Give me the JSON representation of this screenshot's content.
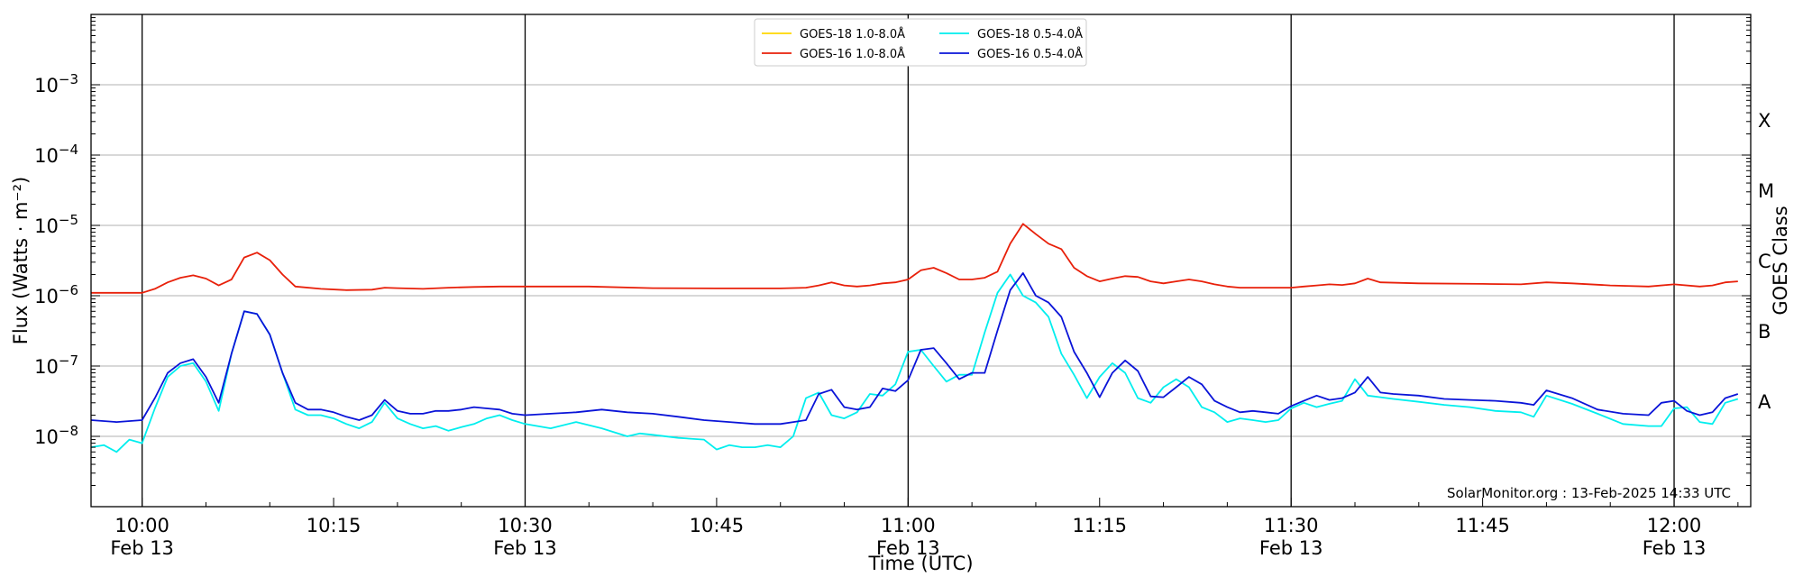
{
  "chart_data": {
    "type": "line",
    "title": "",
    "xlabel": "Time (UTC)",
    "ylabel": "Flux (Watts · m⁻²)",
    "y2label": "GOES Class",
    "yscale": "log",
    "ylim": [
      1e-09,
      0.01
    ],
    "xlim": [
      "09:56",
      "12:06"
    ],
    "grid": "horizontal at decades 1e-8 to 1e-3; vertical black lines every 30 min",
    "legend_position": "top-center",
    "credit": "SolarMonitor.org : 13-Feb-2025 14:33 UTC",
    "y_ticks": [
      {
        "base": "10",
        "exp": "−3",
        "value": 0.001
      },
      {
        "base": "10",
        "exp": "−4",
        "value": 0.0001
      },
      {
        "base": "10",
        "exp": "−5",
        "value": 1e-05
      },
      {
        "base": "10",
        "exp": "−6",
        "value": 1e-06
      },
      {
        "base": "10",
        "exp": "−7",
        "value": 1e-07
      },
      {
        "base": "10",
        "exp": "−8",
        "value": 1e-08
      }
    ],
    "x_ticks": [
      {
        "time": "10:00",
        "label": "10:00",
        "sub": "Feb 13"
      },
      {
        "time": "10:15",
        "label": "10:15",
        "sub": ""
      },
      {
        "time": "10:30",
        "label": "10:30",
        "sub": "Feb 13"
      },
      {
        "time": "10:45",
        "label": "10:45",
        "sub": ""
      },
      {
        "time": "11:00",
        "label": "11:00",
        "sub": "Feb 13"
      },
      {
        "time": "11:15",
        "label": "11:15",
        "sub": ""
      },
      {
        "time": "11:30",
        "label": "11:30",
        "sub": "Feb 13"
      },
      {
        "time": "11:45",
        "label": "11:45",
        "sub": ""
      },
      {
        "time": "12:00",
        "label": "12:00",
        "sub": "Feb 13"
      }
    ],
    "vertical_lines": [
      "10:00",
      "10:30",
      "11:00",
      "11:30",
      "12:00"
    ],
    "class_labels": [
      {
        "label": "X",
        "value": 0.000316
      },
      {
        "label": "M",
        "value": 3.16e-05
      },
      {
        "label": "C",
        "value": 3.16e-06
      },
      {
        "label": "B",
        "value": 3.16e-07
      },
      {
        "label": "A",
        "value": 3.16e-08
      }
    ],
    "series": [
      {
        "name": "GOES-18 1.0-8.0Å",
        "color": "#ffd700",
        "times": [],
        "values": []
      },
      {
        "name": "GOES-16 1.0-8.0Å",
        "color": "#e8200a",
        "times": [
          "09:56",
          "09:58",
          "10:00",
          "10:01",
          "10:02",
          "10:03",
          "10:04",
          "10:05",
          "10:06",
          "10:07",
          "10:08",
          "10:09",
          "10:10",
          "10:11",
          "10:12",
          "10:14",
          "10:16",
          "10:18",
          "10:19",
          "10:20",
          "10:22",
          "10:24",
          "10:26",
          "10:28",
          "10:30",
          "10:35",
          "10:40",
          "10:45",
          "10:50",
          "10:52",
          "10:53",
          "10:54",
          "10:55",
          "10:56",
          "10:57",
          "10:58",
          "10:59",
          "11:00",
          "11:01",
          "11:02",
          "11:03",
          "11:04",
          "11:05",
          "11:06",
          "11:07",
          "11:08",
          "11:09",
          "11:10",
          "11:11",
          "11:12",
          "11:13",
          "11:14",
          "11:15",
          "11:16",
          "11:17",
          "11:18",
          "11:19",
          "11:20",
          "11:21",
          "11:22",
          "11:23",
          "11:24",
          "11:25",
          "11:26",
          "11:27",
          "11:28",
          "11:30",
          "11:31",
          "11:32",
          "11:33",
          "11:34",
          "11:35",
          "11:36",
          "11:37",
          "11:40",
          "11:45",
          "11:48",
          "11:50",
          "11:52",
          "11:55",
          "11:58",
          "12:00",
          "12:02",
          "12:03",
          "12:04",
          "12:05"
        ],
        "values": [
          1.1e-06,
          1.1e-06,
          1.1e-06,
          1.25e-06,
          1.55e-06,
          1.8e-06,
          1.95e-06,
          1.75e-06,
          1.4e-06,
          1.7e-06,
          3.5e-06,
          4.1e-06,
          3.2e-06,
          2e-06,
          1.35e-06,
          1.25e-06,
          1.2e-06,
          1.22e-06,
          1.3e-06,
          1.28e-06,
          1.25e-06,
          1.3e-06,
          1.33e-06,
          1.35e-06,
          1.35e-06,
          1.35e-06,
          1.28e-06,
          1.27e-06,
          1.27e-06,
          1.3e-06,
          1.4e-06,
          1.55e-06,
          1.4e-06,
          1.35e-06,
          1.4e-06,
          1.5e-06,
          1.55e-06,
          1.7e-06,
          2.3e-06,
          2.5e-06,
          2.1e-06,
          1.7e-06,
          1.7e-06,
          1.8e-06,
          2.2e-06,
          5.5e-06,
          1.05e-05,
          7.5e-06,
          5.5e-06,
          4.6e-06,
          2.5e-06,
          1.9e-06,
          1.6e-06,
          1.75e-06,
          1.9e-06,
          1.85e-06,
          1.6e-06,
          1.5e-06,
          1.6e-06,
          1.7e-06,
          1.6e-06,
          1.45e-06,
          1.35e-06,
          1.3e-06,
          1.3e-06,
          1.3e-06,
          1.3e-06,
          1.35e-06,
          1.4e-06,
          1.45e-06,
          1.42e-06,
          1.5e-06,
          1.75e-06,
          1.55e-06,
          1.5e-06,
          1.47e-06,
          1.45e-06,
          1.55e-06,
          1.5e-06,
          1.4e-06,
          1.35e-06,
          1.45e-06,
          1.35e-06,
          1.4e-06,
          1.55e-06,
          1.6e-06
        ]
      },
      {
        "name": "GOES-18 0.5-4.0Å",
        "color": "#00eeee",
        "times": [
          "09:56",
          "09:57",
          "09:58",
          "09:59",
          "10:00",
          "10:01",
          "10:02",
          "10:03",
          "10:04",
          "10:05",
          "10:06",
          "10:07",
          "10:08",
          "10:09",
          "10:10",
          "10:11",
          "10:12",
          "10:13",
          "10:14",
          "10:15",
          "10:16",
          "10:17",
          "10:18",
          "10:19",
          "10:20",
          "10:21",
          "10:22",
          "10:23",
          "10:24",
          "10:25",
          "10:26",
          "10:27",
          "10:28",
          "10:29",
          "10:30",
          "10:32",
          "10:34",
          "10:36",
          "10:38",
          "10:39",
          "10:40",
          "10:42",
          "10:44",
          "10:45",
          "10:46",
          "10:47",
          "10:48",
          "10:49",
          "10:50",
          "10:51",
          "10:52",
          "10:53",
          "10:54",
          "10:55",
          "10:56",
          "10:57",
          "10:58",
          "10:59",
          "11:00",
          "11:01",
          "11:02",
          "11:03",
          "11:04",
          "11:05",
          "11:06",
          "11:07",
          "11:08",
          "11:09",
          "11:10",
          "11:11",
          "11:12",
          "11:13",
          "11:14",
          "11:15",
          "11:16",
          "11:17",
          "11:18",
          "11:19",
          "11:20",
          "11:21",
          "11:22",
          "11:23",
          "11:24",
          "11:25",
          "11:26",
          "11:27",
          "11:28",
          "11:29",
          "11:30",
          "11:31",
          "11:32",
          "11:33",
          "11:34",
          "11:35",
          "11:36",
          "11:37",
          "11:38",
          "11:40",
          "11:42",
          "11:44",
          "11:46",
          "11:48",
          "11:49",
          "11:50",
          "11:52",
          "11:54",
          "11:56",
          "11:58",
          "11:59",
          "12:00",
          "12:01",
          "12:02",
          "12:03",
          "12:04",
          "12:05"
        ],
        "values": [
          7e-09,
          7.5e-09,
          6e-09,
          9e-09,
          8e-09,
          2.5e-08,
          7e-08,
          1e-07,
          1.1e-07,
          6e-08,
          2.3e-08,
          1.5e-07,
          6e-07,
          5.5e-07,
          2.8e-07,
          8e-08,
          2.4e-08,
          2e-08,
          2e-08,
          1.8e-08,
          1.5e-08,
          1.3e-08,
          1.6e-08,
          3e-08,
          1.8e-08,
          1.5e-08,
          1.3e-08,
          1.4e-08,
          1.2e-08,
          1.35e-08,
          1.5e-08,
          1.8e-08,
          2e-08,
          1.7e-08,
          1.5e-08,
          1.3e-08,
          1.6e-08,
          1.3e-08,
          1e-08,
          1.1e-08,
          1.05e-08,
          9.5e-09,
          9e-09,
          6.5e-09,
          7.5e-09,
          7e-09,
          7e-09,
          7.5e-09,
          7e-09,
          1e-08,
          3.5e-08,
          4.2e-08,
          2e-08,
          1.8e-08,
          2.2e-08,
          4e-08,
          3.8e-08,
          5.5e-08,
          1.6e-07,
          1.7e-07,
          1e-07,
          6e-08,
          7.5e-08,
          7.5e-08,
          3e-07,
          1.1e-06,
          2e-06,
          1e-06,
          8e-07,
          5e-07,
          1.5e-07,
          7.5e-08,
          3.5e-08,
          7e-08,
          1.1e-07,
          8e-08,
          3.5e-08,
          3e-08,
          5e-08,
          6.5e-08,
          5e-08,
          2.6e-08,
          2.2e-08,
          1.6e-08,
          1.8e-08,
          1.7e-08,
          1.6e-08,
          1.7e-08,
          2.5e-08,
          3e-08,
          2.6e-08,
          2.9e-08,
          3.2e-08,
          6.5e-08,
          3.8e-08,
          3.6e-08,
          3.4e-08,
          3.1e-08,
          2.8e-08,
          2.6e-08,
          2.3e-08,
          2.2e-08,
          1.9e-08,
          3.8e-08,
          2.9e-08,
          2.1e-08,
          1.5e-08,
          1.4e-08,
          1.4e-08,
          2.5e-08,
          2.6e-08,
          1.6e-08,
          1.5e-08,
          3e-08,
          3.4e-08
        ]
      },
      {
        "name": "GOES-16 0.5-4.0Å",
        "color": "#0a14d8",
        "times": [
          "09:56",
          "09:58",
          "10:00",
          "10:01",
          "10:02",
          "10:03",
          "10:04",
          "10:05",
          "10:06",
          "10:07",
          "10:08",
          "10:09",
          "10:10",
          "10:11",
          "10:12",
          "10:13",
          "10:14",
          "10:15",
          "10:16",
          "10:17",
          "10:18",
          "10:19",
          "10:20",
          "10:21",
          "10:22",
          "10:23",
          "10:24",
          "10:25",
          "10:26",
          "10:27",
          "10:28",
          "10:29",
          "10:30",
          "10:32",
          "10:34",
          "10:36",
          "10:38",
          "10:40",
          "10:42",
          "10:44",
          "10:46",
          "10:48",
          "10:50",
          "10:52",
          "10:53",
          "10:54",
          "10:55",
          "10:56",
          "10:57",
          "10:58",
          "10:59",
          "11:00",
          "11:01",
          "11:02",
          "11:03",
          "11:04",
          "11:05",
          "11:06",
          "11:07",
          "11:08",
          "11:09",
          "11:10",
          "11:11",
          "11:12",
          "11:13",
          "11:14",
          "11:15",
          "11:16",
          "11:17",
          "11:18",
          "11:19",
          "11:20",
          "11:21",
          "11:22",
          "11:23",
          "11:24",
          "11:25",
          "11:26",
          "11:27",
          "11:28",
          "11:29",
          "11:30",
          "11:31",
          "11:32",
          "11:33",
          "11:34",
          "11:35",
          "11:36",
          "11:37",
          "11:38",
          "11:40",
          "11:42",
          "11:44",
          "11:46",
          "11:48",
          "11:49",
          "11:50",
          "11:52",
          "11:54",
          "11:56",
          "11:58",
          "11:59",
          "12:00",
          "12:01",
          "12:02",
          "12:03",
          "12:04",
          "12:05"
        ],
        "values": [
          1.7e-08,
          1.6e-08,
          1.7e-08,
          3.5e-08,
          8e-08,
          1.1e-07,
          1.25e-07,
          7e-08,
          3e-08,
          1.5e-07,
          6e-07,
          5.5e-07,
          2.8e-07,
          8e-08,
          3e-08,
          2.4e-08,
          2.4e-08,
          2.2e-08,
          1.9e-08,
          1.7e-08,
          2e-08,
          3.3e-08,
          2.3e-08,
          2.1e-08,
          2.1e-08,
          2.3e-08,
          2.3e-08,
          2.4e-08,
          2.6e-08,
          2.5e-08,
          2.4e-08,
          2.1e-08,
          2e-08,
          2.1e-08,
          2.2e-08,
          2.4e-08,
          2.2e-08,
          2.1e-08,
          1.9e-08,
          1.7e-08,
          1.6e-08,
          1.5e-08,
          1.5e-08,
          1.7e-08,
          4e-08,
          4.6e-08,
          2.6e-08,
          2.4e-08,
          2.6e-08,
          4.8e-08,
          4.4e-08,
          6.3e-08,
          1.7e-07,
          1.8e-07,
          1.1e-07,
          6.5e-08,
          8e-08,
          8e-08,
          3.2e-07,
          1.2e-06,
          2.1e-06,
          1e-06,
          8e-07,
          5e-07,
          1.6e-07,
          8e-08,
          3.6e-08,
          8e-08,
          1.2e-07,
          8.5e-08,
          3.7e-08,
          3.6e-08,
          5e-08,
          7e-08,
          5.5e-08,
          3.2e-08,
          2.6e-08,
          2.2e-08,
          2.3e-08,
          2.2e-08,
          2.1e-08,
          2.7e-08,
          3.2e-08,
          3.8e-08,
          3.3e-08,
          3.5e-08,
          4.2e-08,
          7e-08,
          4.2e-08,
          4e-08,
          3.8e-08,
          3.4e-08,
          3.3e-08,
          3.2e-08,
          3e-08,
          2.8e-08,
          4.5e-08,
          3.5e-08,
          2.4e-08,
          2.1e-08,
          2e-08,
          3e-08,
          3.2e-08,
          2.3e-08,
          2e-08,
          2.2e-08,
          3.5e-08,
          4e-08
        ]
      }
    ]
  }
}
